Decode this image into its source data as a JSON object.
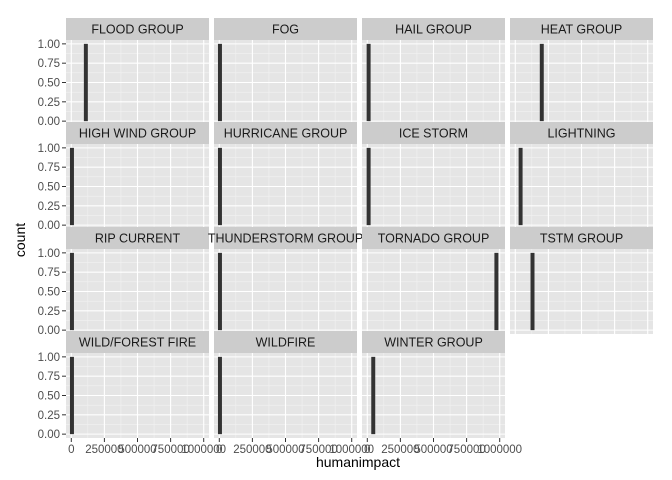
{
  "chart_data": {
    "type": "bar",
    "layout": "facet_wrap",
    "ncol": 4,
    "xlabel": "humanimpact",
    "ylabel": "count",
    "xlim": [
      -40000,
      1040000
    ],
    "ylim": [
      -0.05,
      1.05
    ],
    "x_ticks": [
      0,
      250000,
      500000,
      750000,
      1000000
    ],
    "x_tick_labels": [
      "0",
      "250000",
      "500000",
      "750000",
      "1000000"
    ],
    "y_ticks": [
      0,
      0.25,
      0.5,
      0.75,
      1
    ],
    "y_tick_labels": [
      "0.00",
      "0.25",
      "0.50",
      "0.75",
      "1.00"
    ],
    "bar_width": 30000,
    "panels": [
      {
        "name": "FLOOD GROUP",
        "bars": [
          {
            "x": 110000,
            "count": 1
          }
        ]
      },
      {
        "name": "FOG",
        "bars": [
          {
            "x": 5000,
            "count": 1
          }
        ]
      },
      {
        "name": "HAIL GROUP",
        "bars": [
          {
            "x": 10000,
            "count": 1
          }
        ]
      },
      {
        "name": "HEAT GROUP",
        "bars": [
          {
            "x": 200000,
            "count": 1
          }
        ]
      },
      {
        "name": "HIGH WIND GROUP",
        "bars": [
          {
            "x": 5000,
            "count": 1
          }
        ]
      },
      {
        "name": "HURRICANE GROUP",
        "bars": [
          {
            "x": 5000,
            "count": 1
          }
        ]
      },
      {
        "name": "ICE STORM",
        "bars": [
          {
            "x": 10000,
            "count": 1
          }
        ]
      },
      {
        "name": "LIGHTNING",
        "bars": [
          {
            "x": 40000,
            "count": 1
          }
        ]
      },
      {
        "name": "RIP CURRENT",
        "bars": [
          {
            "x": 5000,
            "count": 1
          }
        ]
      },
      {
        "name": "THUNDERSTORM GROUP",
        "bars": [
          {
            "x": 5000,
            "count": 1
          }
        ]
      },
      {
        "name": "TORNADO GROUP",
        "bars": [
          {
            "x": 975000,
            "count": 1
          }
        ]
      },
      {
        "name": "TSTM GROUP",
        "bars": [
          {
            "x": 130000,
            "count": 1
          }
        ]
      },
      {
        "name": "WILD/FOREST FIRE",
        "bars": [
          {
            "x": 5000,
            "count": 1
          }
        ]
      },
      {
        "name": "WILDFIRE",
        "bars": [
          {
            "x": 5000,
            "count": 1
          }
        ]
      },
      {
        "name": "WINTER GROUP",
        "bars": [
          {
            "x": 45000,
            "count": 1
          }
        ]
      }
    ],
    "colors": {
      "panel_background": "#e5e5e5",
      "strip_background": "#cccccc",
      "grid_major": "#ffffff",
      "grid_minor": "#f2f2f2",
      "bar_fill": "#333333",
      "tick_label": "#4d4d4d"
    }
  }
}
